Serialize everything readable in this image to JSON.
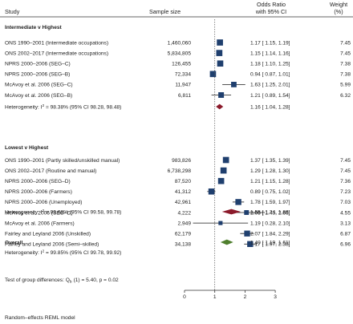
{
  "header": {
    "study": "Study",
    "sample_size": "Sample size",
    "or_line1": "Odds Ratio",
    "or_line2": "with 95% CI",
    "weight_line1": "Weight",
    "weight_line2": "(%)"
  },
  "footer": {
    "model": "Random–effects REML model",
    "test": "Test of group differences: Q",
    "test_sub": "b",
    "test_rest": "(1) = 5.40, p = 0.02"
  },
  "colors": {
    "study_marker": "#1f3f6e",
    "subgroup_diamond": "#8b1a2b",
    "overall_diamond": "#4f7f2e"
  },
  "chart_data": {
    "type": "forest",
    "xlim": [
      0,
      3
    ],
    "xticks": [
      "0",
      "1",
      "2",
      "3"
    ],
    "reference_line": 1,
    "groups": [
      {
        "title": "Intermediate v Highest",
        "studies": [
          {
            "name": "ONS 1990–2001 (Intermediate occupations)",
            "n": "1,460,060",
            "or": 1.17,
            "lo": 1.15,
            "hi": 1.19,
            "ci_text": "1.17 [  1.15,  1.19]",
            "weight": "7.45"
          },
          {
            "name": "ONS 2002–2017 (Intermediate occupations)",
            "n": "5,834,805",
            "or": 1.15,
            "lo": 1.14,
            "hi": 1.16,
            "ci_text": "1.15 [  1.14,  1.16]",
            "weight": "7.45"
          },
          {
            "name": "NPRS 2000–2006 (SEG–C)",
            "n": "126,455",
            "or": 1.18,
            "lo": 1.1,
            "hi": 1.25,
            "ci_text": "1.18 [  1.10,  1.25]",
            "weight": "7.38"
          },
          {
            "name": "NPRS 2000–2006 (SEG–B)",
            "n": "72,334",
            "or": 0.94,
            "lo": 0.87,
            "hi": 1.01,
            "ci_text": "0.94 [  0.87,  1.01]",
            "weight": "7.38"
          },
          {
            "name": "McAvoy et al. 2006 (SEG–C)",
            "n": "11,947",
            "or": 1.63,
            "lo": 1.25,
            "hi": 2.01,
            "ci_text": "1.63 [  1.25,  2.01]",
            "weight": "5.99"
          },
          {
            "name": "McAvoy et al. 2006 (SEG–B)",
            "n": "6,811",
            "or": 1.21,
            "lo": 0.89,
            "hi": 1.54,
            "ci_text": "1.21 [  0.89,  1.54]",
            "weight": "6.32"
          }
        ],
        "summary": {
          "label": "Heterogeneity: I",
          "sup": "2",
          "rest": " = 98.38% (95% CI 98.28, 98.48)",
          "or": 1.16,
          "lo": 1.04,
          "hi": 1.28,
          "ci_text": "1.16 [  1.04,  1.28]"
        }
      },
      {
        "title": "Lowest v Highest",
        "studies": [
          {
            "name": "ONS 1990–2001 (Partly skilled/unskilled manual)",
            "n": "983,826",
            "or": 1.37,
            "lo": 1.35,
            "hi": 1.39,
            "ci_text": "1.37 [  1.35,  1.39]",
            "weight": "7.45"
          },
          {
            "name": "ONS 2002–2017 (Routine and manual)",
            "n": "6,738,298",
            "or": 1.29,
            "lo": 1.28,
            "hi": 1.3,
            "ci_text": "1.29 [  1.28,  1.30]",
            "weight": "7.45"
          },
          {
            "name": "NPRS 2000–2006 (SEG–D)",
            "n": "87,520",
            "or": 1.21,
            "lo": 1.15,
            "hi": 1.28,
            "ci_text": "1.21 [  1.15,  1.28]",
            "weight": "7.36"
          },
          {
            "name": "NPRS 2000–2006 (Farmers)",
            "n": "41,312",
            "or": 0.89,
            "lo": 0.75,
            "hi": 1.02,
            "ci_text": "0.89 [  0.75,  1.02]",
            "weight": "7.23"
          },
          {
            "name": "NPRS 2000–2006 (Unemployed)",
            "n": "42,961",
            "or": 1.78,
            "lo": 1.59,
            "hi": 1.97,
            "ci_text": "1.78 [  1.59,  1.97]",
            "weight": "7.03"
          },
          {
            "name": "McAvoy et al. 2006 (SEG–D)",
            "n": "4,222",
            "or": 2.05,
            "lo": 1.43,
            "hi": 2.66,
            "ci_text": "2.05 [  1.43,  2.66]",
            "weight": "4.55"
          },
          {
            "name": "McAvoy et al. 2006 (Farmers)",
            "n": "2,949",
            "or": 1.19,
            "lo": 0.28,
            "hi": 2.1,
            "ci_text": "1.19 [  0.28,  2.10]",
            "weight": "3.13"
          },
          {
            "name": "Fairley and Leyland 2006 (Unskilled)",
            "n": "62,179",
            "or": 2.07,
            "lo": 1.84,
            "hi": 2.29,
            "ci_text": "2.07 [  1.84,  2.29]",
            "weight": "6.87"
          },
          {
            "name": "Fairley and Leyland 2006 (Semi–skilled)",
            "n": "34,138",
            "or": 2.17,
            "lo": 1.97,
            "hi": 2.38,
            "ci_text": "2.17 [  1.97,  2.38]",
            "weight": "6.96"
          }
        ],
        "summary": {
          "label": "Heterogeneity: I",
          "sup": "2",
          "rest": " = 99.68% (95% CI 99.58, 99.78)",
          "or": 1.55,
          "lo": 1.24,
          "hi": 1.86,
          "ci_text": "1.55 [  1.24,  1.86]"
        }
      }
    ],
    "overall": {
      "title": "Overall",
      "label": "Heterogeneity: I",
      "sup": "2",
      "rest": " = 99.85% (95% CI 99.78, 99.92)",
      "or": 1.4,
      "lo": 1.19,
      "hi": 1.61,
      "ci_text": "1.40 [  1.19,  1.61]"
    }
  }
}
